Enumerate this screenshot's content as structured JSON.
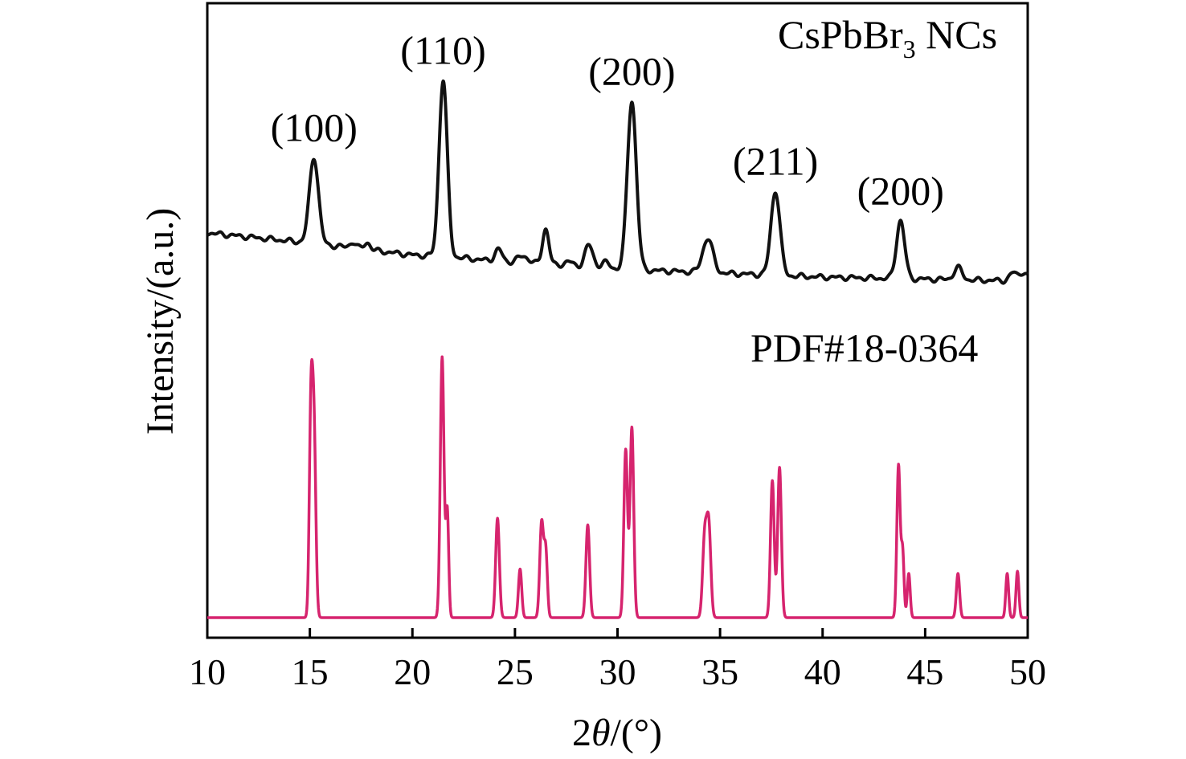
{
  "chart_data": {
    "type": "line",
    "xlabel_prefix": "2",
    "xlabel_theta": "θ",
    "xlabel_suffix": "/(°)",
    "ylabel": "Intensity/(a.u.)",
    "xlim": [
      10,
      50
    ],
    "xticks": [
      "10",
      "15",
      "20",
      "25",
      "30",
      "35",
      "40",
      "45",
      "50"
    ],
    "grid": false,
    "colors": {
      "sample": "#111111",
      "reference": "#d6246e"
    },
    "series": [
      {
        "name_main": "CsPbBr",
        "name_sub": "3",
        "name_tail": " NCs",
        "baseline": [
          [
            10,
            0.62
          ],
          [
            15,
            0.595
          ],
          [
            20,
            0.565
          ],
          [
            22,
            0.56
          ],
          [
            25,
            0.545
          ],
          [
            30,
            0.53
          ],
          [
            35,
            0.52
          ],
          [
            40,
            0.51
          ],
          [
            45,
            0.505
          ],
          [
            50,
            0.5
          ]
        ],
        "peaks": [
          {
            "x": 15.2,
            "height": 0.215,
            "width": 0.22,
            "label": "(100)"
          },
          {
            "x": 17.1,
            "height": 0.015,
            "width": 0.15
          },
          {
            "x": 17.8,
            "height": 0.018,
            "width": 0.15
          },
          {
            "x": 21.5,
            "height": 0.44,
            "width": 0.2,
            "label": "(110)"
          },
          {
            "x": 24.2,
            "height": 0.03,
            "width": 0.18
          },
          {
            "x": 25.4,
            "height": 0.018,
            "width": 0.3
          },
          {
            "x": 26.5,
            "height": 0.09,
            "width": 0.16
          },
          {
            "x": 27.6,
            "height": 0.012,
            "width": 0.2
          },
          {
            "x": 28.6,
            "height": 0.055,
            "width": 0.2
          },
          {
            "x": 29.4,
            "height": 0.015,
            "width": 0.2
          },
          {
            "x": 30.7,
            "height": 0.42,
            "width": 0.22,
            "label": "(200)"
          },
          {
            "x": 34.4,
            "height": 0.085,
            "width": 0.25
          },
          {
            "x": 37.7,
            "height": 0.21,
            "width": 0.22,
            "label": "(211)"
          },
          {
            "x": 43.8,
            "height": 0.145,
            "width": 0.2,
            "label": "(200)"
          },
          {
            "x": 46.6,
            "height": 0.03,
            "width": 0.2
          },
          {
            "x": 49.3,
            "height": 0.02,
            "width": 0.18
          },
          {
            "x": 49.8,
            "height": 0.022,
            "width": 0.18
          }
        ]
      },
      {
        "name": "PDF#18-0364",
        "baseline": [
          [
            10,
            0.0
          ],
          [
            50,
            0.0
          ]
        ],
        "peaks": [
          {
            "x": 15.05,
            "height": 0.435,
            "width": 0.08
          },
          {
            "x": 15.2,
            "height": 0.42,
            "width": 0.09
          },
          {
            "x": 21.45,
            "height": 0.59,
            "width": 0.09
          },
          {
            "x": 21.7,
            "height": 0.24,
            "width": 0.07
          },
          {
            "x": 24.15,
            "height": 0.225,
            "width": 0.09
          },
          {
            "x": 25.25,
            "height": 0.11,
            "width": 0.08
          },
          {
            "x": 26.3,
            "height": 0.215,
            "width": 0.09
          },
          {
            "x": 26.5,
            "height": 0.15,
            "width": 0.08
          },
          {
            "x": 28.55,
            "height": 0.21,
            "width": 0.09
          },
          {
            "x": 30.4,
            "height": 0.38,
            "width": 0.09
          },
          {
            "x": 30.7,
            "height": 0.43,
            "width": 0.09
          },
          {
            "x": 34.25,
            "height": 0.18,
            "width": 0.1
          },
          {
            "x": 34.45,
            "height": 0.205,
            "width": 0.1
          },
          {
            "x": 37.55,
            "height": 0.31,
            "width": 0.09
          },
          {
            "x": 37.9,
            "height": 0.34,
            "width": 0.09
          },
          {
            "x": 43.7,
            "height": 0.345,
            "width": 0.08
          },
          {
            "x": 43.9,
            "height": 0.15,
            "width": 0.07
          },
          {
            "x": 44.2,
            "height": 0.1,
            "width": 0.07
          },
          {
            "x": 46.6,
            "height": 0.1,
            "width": 0.08
          },
          {
            "x": 49.0,
            "height": 0.1,
            "width": 0.07
          },
          {
            "x": 49.5,
            "height": 0.105,
            "width": 0.07
          }
        ]
      }
    ]
  }
}
